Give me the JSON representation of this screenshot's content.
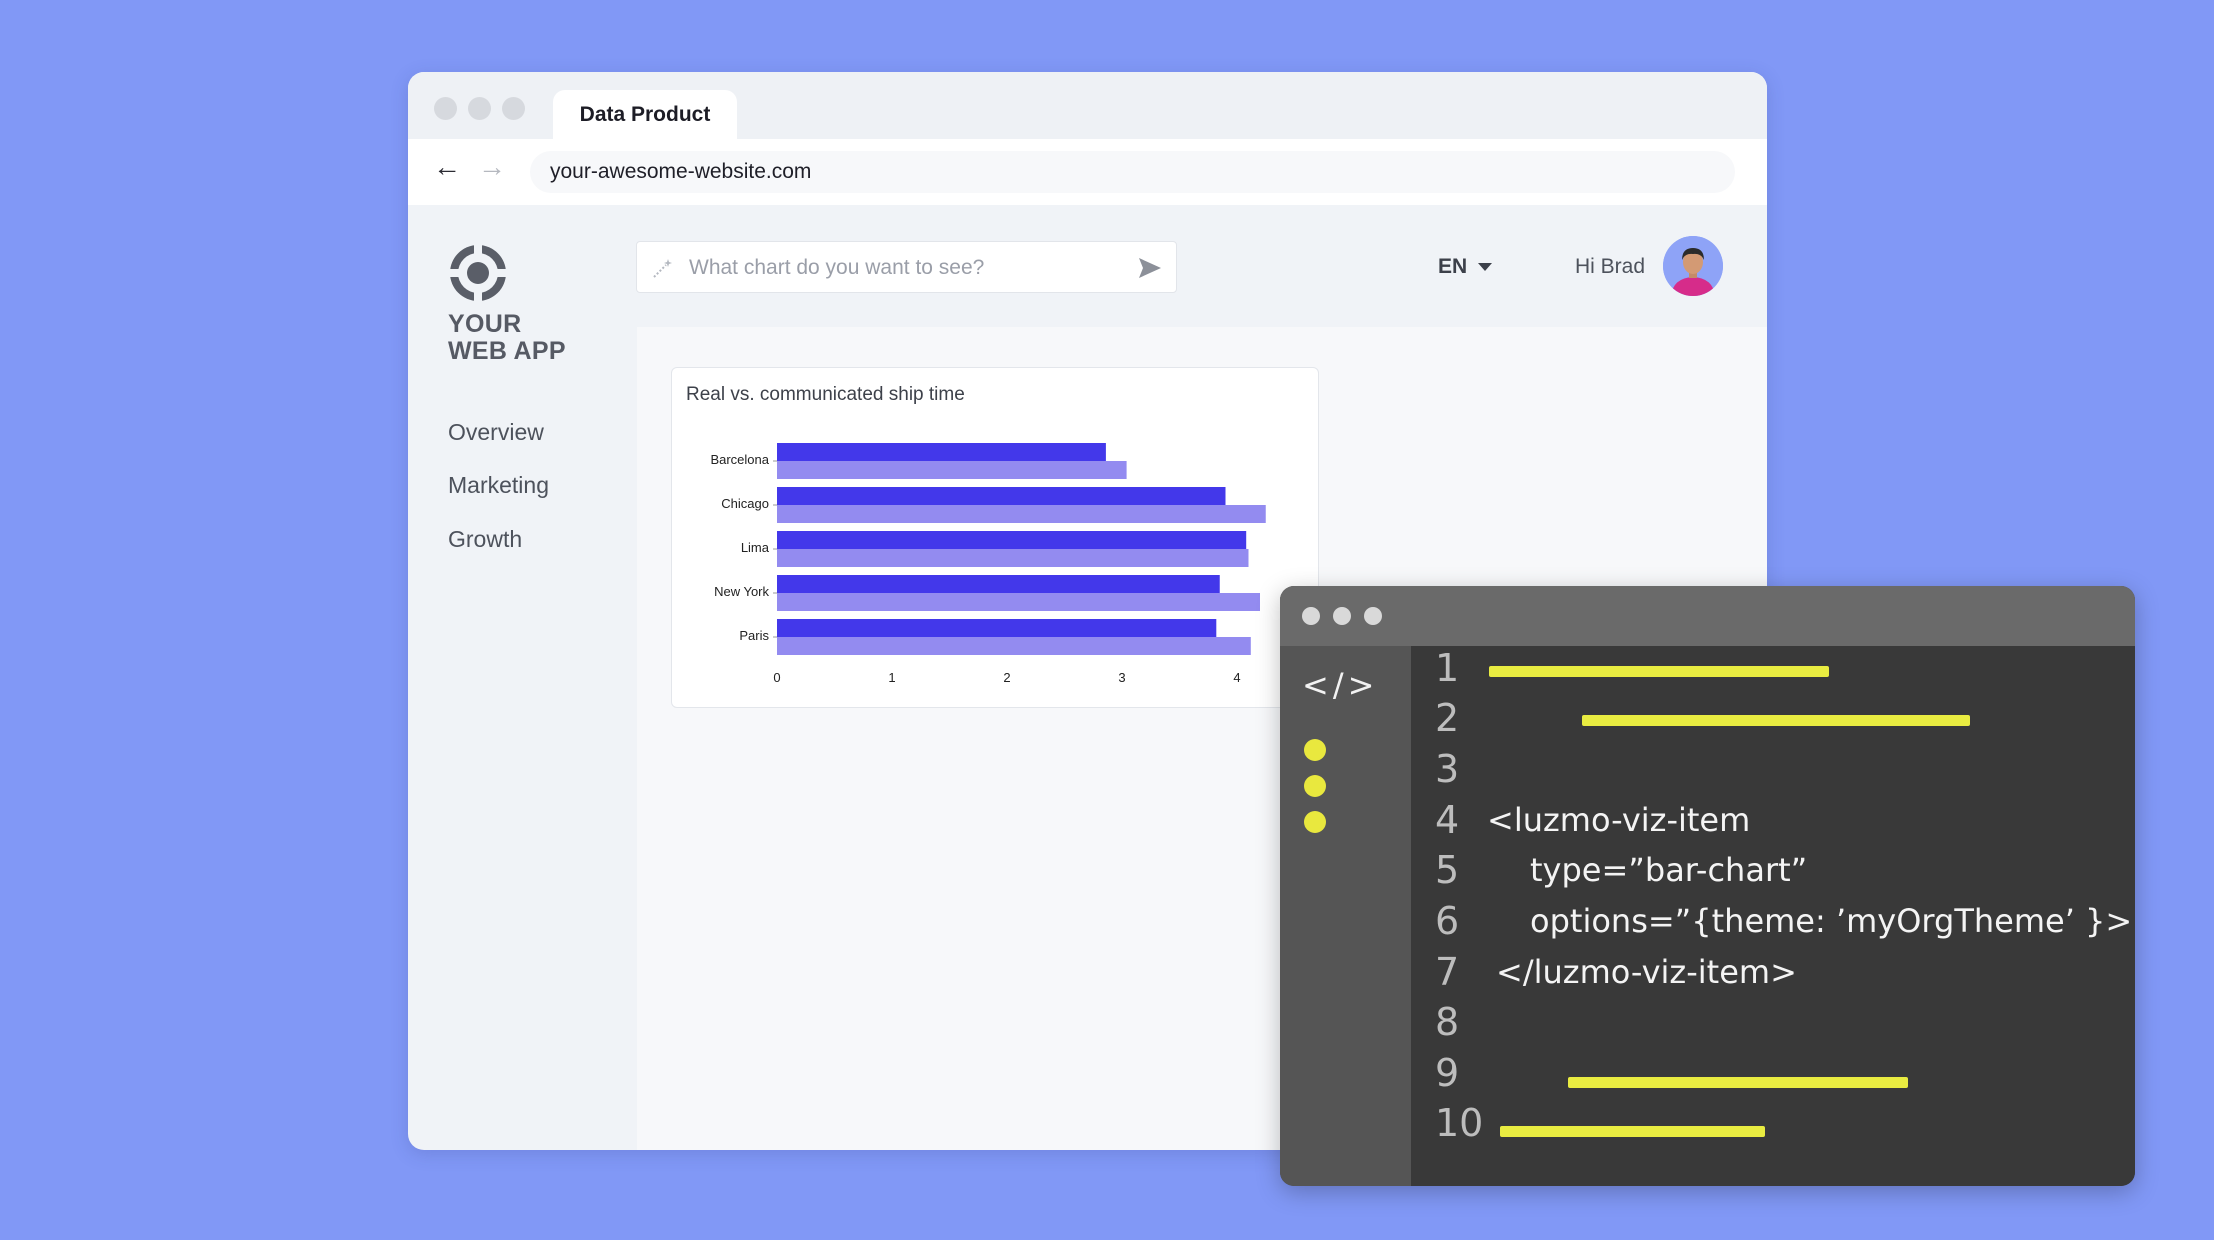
{
  "browser": {
    "tab_title": "Data Product",
    "url": "your-awesome-website.com"
  },
  "app": {
    "logo_line1": "YOUR",
    "logo_line2": "WEB APP",
    "sidebar": {
      "items": [
        {
          "label": "Overview"
        },
        {
          "label": "Marketing"
        },
        {
          "label": "Growth"
        }
      ]
    },
    "search": {
      "placeholder": "What chart do you want to see?",
      "value": ""
    },
    "language": "EN",
    "greeting": "Hi Brad"
  },
  "chart_data": {
    "type": "bar",
    "orientation": "horizontal",
    "title": "Real vs. communicated ship time",
    "categories": [
      "Barcelona",
      "Chicago",
      "Lima",
      "New York",
      "Paris"
    ],
    "series": [
      {
        "values": [
          2.86,
          3.9,
          4.08,
          3.85,
          3.82
        ],
        "color": "#4338ea"
      },
      {
        "values": [
          3.04,
          4.25,
          4.1,
          4.2,
          4.12
        ],
        "color": "#938bf0"
      }
    ],
    "xticks": [
      0,
      1,
      2,
      3,
      4
    ],
    "xlim": [
      0,
      4.4
    ],
    "grid": false
  },
  "code_editor": {
    "tag_icon": "</>",
    "line_numbers": [
      "1",
      "2",
      "3",
      "4",
      "5",
      "6",
      "7",
      "8",
      "9",
      "10"
    ],
    "code": {
      "line4": "<luzmo-viz-item",
      "line5": "type=”bar-chart”",
      "line6": "options=”{theme: ’myOrgTheme’ }>",
      "line7": "</luzmo-viz-item>"
    },
    "colors": {
      "highlight": "#e9ec41",
      "background": "#393939"
    }
  }
}
